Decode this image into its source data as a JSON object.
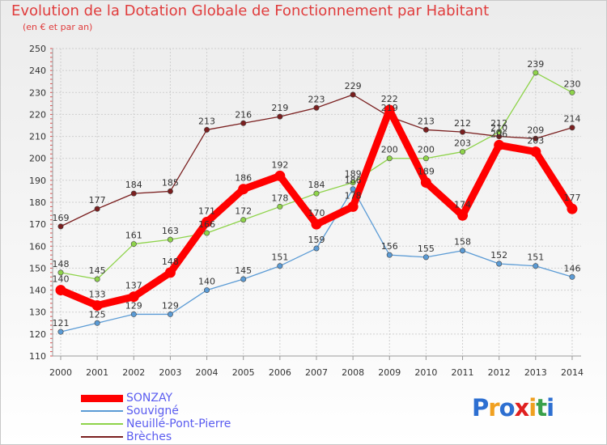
{
  "title": "Evolution de la Dotation Globale de Fonctionnement par Habitant",
  "subtitle": "(en € et par an)",
  "logo": {
    "letters": [
      "P",
      "r",
      "o",
      "x",
      "i",
      "t",
      "i"
    ],
    "colors": [
      "#2d6fd1",
      "#f0a020",
      "#2d6fd1",
      "#e02020",
      "#f0a020",
      "#3aa04a",
      "#2d6fd1"
    ]
  },
  "chart_data": {
    "type": "line",
    "x": [
      "2000",
      "2001",
      "2002",
      "2003",
      "2004",
      "2005",
      "2006",
      "2007",
      "2008",
      "2009",
      "2010",
      "2011",
      "2012",
      "2013",
      "2014"
    ],
    "ylim": [
      110,
      250
    ],
    "yticks": [
      110,
      120,
      130,
      140,
      150,
      160,
      170,
      180,
      190,
      200,
      210,
      220,
      230,
      240,
      250
    ],
    "grid": true,
    "legend_position": "bottom-left",
    "series": [
      {
        "name": "SONZAY",
        "color": "#ff0000",
        "values": [
          140,
          133,
          137,
          148,
          171,
          186,
          192,
          170,
          178,
          222,
          189,
          174,
          206,
          203,
          177
        ]
      },
      {
        "name": "Souvigné",
        "color": "#5b9bd5",
        "values": [
          121,
          125,
          129,
          129,
          140,
          145,
          151,
          159,
          186,
          156,
          155,
          158,
          152,
          151,
          146
        ]
      },
      {
        "name": "Neuillé-Pont-Pierre",
        "color": "#8ed34a",
        "values": [
          148,
          145,
          161,
          163,
          166,
          172,
          178,
          184,
          189,
          200,
          200,
          203,
          212,
          239,
          230
        ]
      },
      {
        "name": "Brèches",
        "color": "#7a1f1f",
        "values": [
          169,
          177,
          184,
          185,
          213,
          216,
          219,
          223,
          229,
          219,
          213,
          212,
          210,
          209,
          214
        ]
      }
    ]
  }
}
